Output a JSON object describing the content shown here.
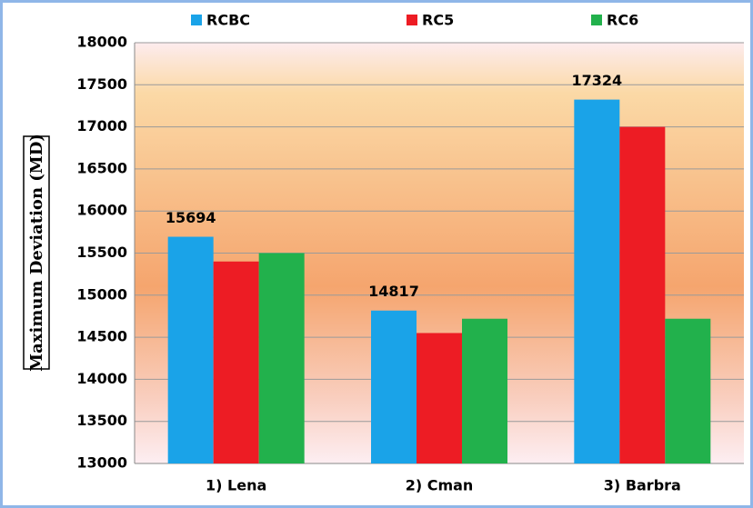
{
  "chart_data": {
    "type": "bar",
    "y_label": "Maximum Deviation (MD)",
    "categories": [
      "1) Lena",
      "2) Cman",
      "3) Barbra"
    ],
    "series": [
      {
        "name": "RCBC",
        "color": "#1aa3e8",
        "values": [
          15694,
          14817,
          17324
        ],
        "data_labels": true
      },
      {
        "name": "RC5",
        "color": "#ed1c24",
        "values": [
          15400,
          14550,
          17000
        ]
      },
      {
        "name": "RC6",
        "color": "#22b14c",
        "values": [
          15500,
          14720,
          14720
        ]
      }
    ],
    "ylim": [
      13000,
      18000
    ],
    "yticks": [
      13000,
      13500,
      14000,
      14500,
      15000,
      15500,
      16000,
      16500,
      17000,
      17500,
      18000
    ],
    "grid": true,
    "legend": "top"
  }
}
